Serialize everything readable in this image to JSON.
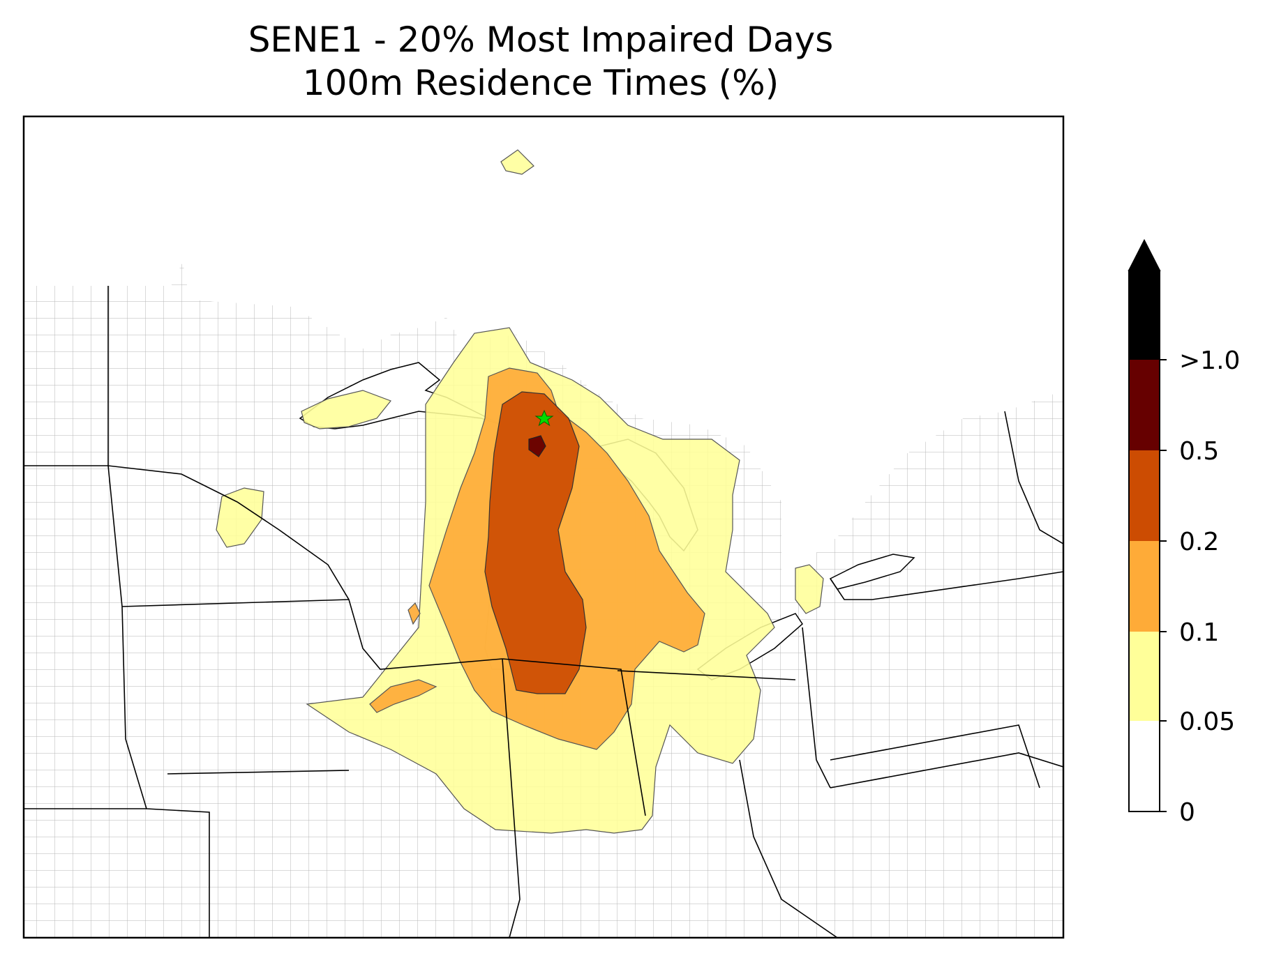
{
  "title": {
    "line1": "SENE1 - 20% Most Impaired Days",
    "line2": "100m Residence Times (%)"
  },
  "colorbar": {
    "levels": [
      {
        "label": "0",
        "color": "#ffffff"
      },
      {
        "label": "0.05",
        "color": "#ffff99"
      },
      {
        "label": "0.1",
        "color": "#feab38"
      },
      {
        "label": "0.2",
        "color": "#cc4c02"
      },
      {
        "label": "0.5",
        "color": "#660000"
      },
      {
        "label": ">1.0",
        "color": "#000000"
      }
    ],
    "extend": "max",
    "placement": "right"
  },
  "map": {
    "region": "Upper Midwest / Great Lakes, United States",
    "marker": {
      "symbol": "star",
      "color": "#00dd00",
      "meaning": "receptor site"
    },
    "boundaries": [
      "state lines",
      "county lines",
      "lake shorelines"
    ]
  }
}
